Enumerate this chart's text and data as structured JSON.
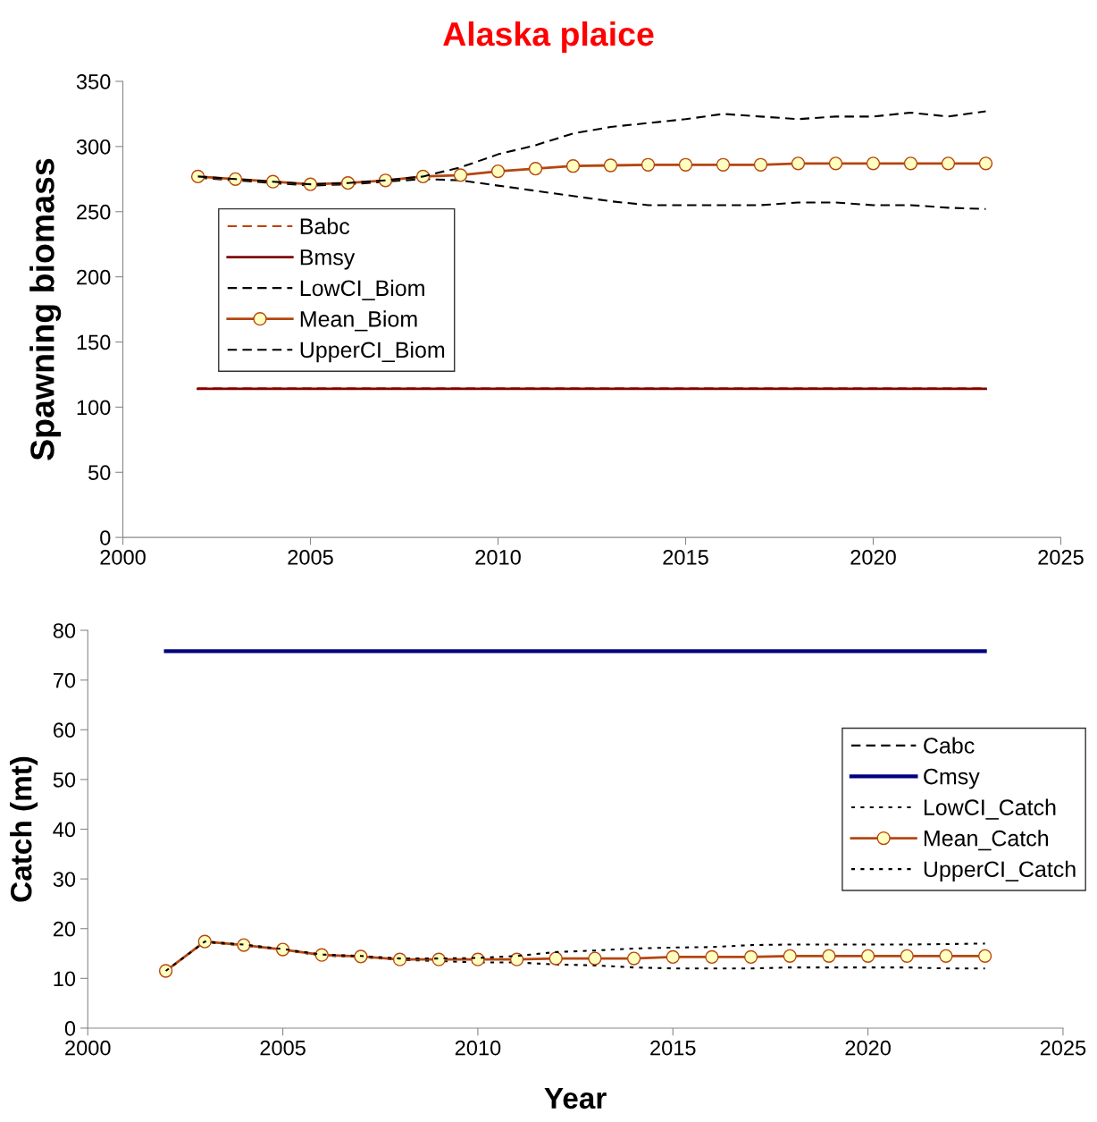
{
  "chart_data": [
    {
      "type": "line",
      "title": "Alaska plaice",
      "ylabel": "Spawning biomass",
      "x": [
        2002,
        2003,
        2004,
        2005,
        2006,
        2007,
        2008,
        2009,
        2010,
        2011,
        2012,
        2013,
        2014,
        2015,
        2016,
        2017,
        2018,
        2019,
        2020,
        2021,
        2022,
        2023
      ],
      "xlim": [
        2000,
        2025
      ],
      "xticks": [
        2000,
        2005,
        2010,
        2015,
        2020,
        2025
      ],
      "ylim": [
        0,
        350
      ],
      "yticks": [
        0,
        50,
        100,
        150,
        200,
        250,
        300,
        350
      ],
      "grid": false,
      "legend": "center left",
      "series": [
        {
          "name": "Babc",
          "color": "#c04000",
          "line_style": "dashed",
          "marker": "none",
          "values": [
            114.5,
            114.5,
            114.5,
            114.5,
            114.5,
            114.5,
            114.5,
            114.5,
            114.5,
            114.5,
            114.5,
            114.5,
            114.5,
            114.5,
            114.5,
            114.5,
            114.5,
            114.5,
            114.5,
            114.5,
            114.5,
            114.5
          ]
        },
        {
          "name": "Bmsy",
          "color": "#800000",
          "line_style": "solid",
          "marker": "none",
          "values": [
            114,
            114,
            114,
            114,
            114,
            114,
            114,
            114,
            114,
            114,
            114,
            114,
            114,
            114,
            114,
            114,
            114,
            114,
            114,
            114,
            114,
            114
          ]
        },
        {
          "name": "LowCI_Biom",
          "color": "#000000",
          "line_style": "dashed",
          "marker": "none",
          "values": [
            276,
            274,
            272,
            270,
            271,
            273,
            275,
            274,
            270,
            266,
            262,
            258,
            255,
            255,
            255,
            255,
            257,
            257,
            255,
            255,
            253,
            252
          ]
        },
        {
          "name": "Mean_Biom",
          "color": "#b5460f",
          "line_style": "solid",
          "marker": "circle",
          "values": [
            277,
            275,
            273,
            271,
            272,
            274,
            277,
            278,
            281,
            283,
            285,
            285.5,
            286,
            286,
            286,
            286,
            287,
            287,
            287,
            287,
            287,
            287
          ]
        },
        {
          "name": "UpperCI_Biom",
          "color": "#000000",
          "line_style": "dashed",
          "marker": "none",
          "values": [
            277,
            275,
            273,
            271,
            272,
            274,
            277,
            284,
            294,
            301,
            310,
            315,
            318,
            321,
            325,
            323,
            321,
            323,
            323,
            326,
            323,
            327
          ]
        }
      ]
    },
    {
      "type": "line",
      "xlabel": "Year",
      "ylabel": "Catch (mt)",
      "x": [
        2002,
        2003,
        2004,
        2005,
        2006,
        2007,
        2008,
        2009,
        2010,
        2011,
        2012,
        2013,
        2014,
        2015,
        2016,
        2017,
        2018,
        2019,
        2020,
        2021,
        2022,
        2023
      ],
      "xlim": [
        2000,
        2025
      ],
      "xticks": [
        2000,
        2005,
        2010,
        2015,
        2020,
        2025
      ],
      "ylim": [
        0,
        80
      ],
      "yticks": [
        0,
        10,
        20,
        30,
        40,
        50,
        60,
        70,
        80
      ],
      "grid": false,
      "legend": "center right",
      "series": [
        {
          "name": "Cabc",
          "color": "#000000",
          "line_style": "dashed",
          "marker": "none",
          "values": [
            null,
            null,
            null,
            null,
            null,
            null,
            null,
            null,
            null,
            null,
            null,
            null,
            null,
            null,
            null,
            null,
            null,
            null,
            null,
            null,
            null,
            null
          ]
        },
        {
          "name": "Cmsy",
          "color": "#000080",
          "line_style": "solid",
          "marker": "none",
          "values": [
            75.8,
            75.8,
            75.8,
            75.8,
            75.8,
            75.8,
            75.8,
            75.8,
            75.8,
            75.8,
            75.8,
            75.8,
            75.8,
            75.8,
            75.8,
            75.8,
            75.8,
            75.8,
            75.8,
            75.8,
            75.8,
            75.8
          ]
        },
        {
          "name": "LowCI_Catch",
          "color": "#000000",
          "line_style": "dotted",
          "marker": "none",
          "values": [
            11.5,
            17.3,
            16.6,
            15.7,
            14.6,
            14.3,
            13.7,
            13.5,
            13.2,
            13.2,
            12.8,
            12.6,
            12.2,
            12.0,
            12.0,
            12.0,
            12.2,
            12.2,
            12.2,
            12.2,
            12.0,
            12.0
          ]
        },
        {
          "name": "Mean_Catch",
          "color": "#b5460f",
          "line_style": "solid",
          "marker": "circle",
          "values": [
            11.5,
            17.4,
            16.7,
            15.8,
            14.7,
            14.4,
            13.8,
            13.8,
            13.8,
            13.8,
            14.0,
            14.0,
            14.0,
            14.3,
            14.3,
            14.3,
            14.5,
            14.5,
            14.5,
            14.5,
            14.5,
            14.5
          ]
        },
        {
          "name": "UpperCI_Catch",
          "color": "#000000",
          "line_style": "dotted",
          "marker": "none",
          "values": [
            11.5,
            17.4,
            16.8,
            15.9,
            14.8,
            14.5,
            14.0,
            14.0,
            14.1,
            14.5,
            15.3,
            15.6,
            16.0,
            16.2,
            16.3,
            16.7,
            16.8,
            16.8,
            16.8,
            16.8,
            16.9,
            17.0
          ]
        }
      ]
    }
  ]
}
